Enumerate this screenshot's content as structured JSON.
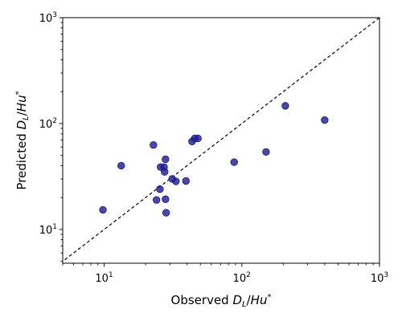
{
  "chart_data": {
    "type": "scatter",
    "xlabel": "Observed D_L/Hu*",
    "ylabel": "Predicted D_L/Hu*",
    "xscale": "log",
    "yscale": "log",
    "xlim": [
      5,
      1000
    ],
    "ylim": [
      4.8,
      1000
    ],
    "reference_line": {
      "type": "y=x",
      "style": "dashed",
      "color": "#000000"
    },
    "x_ticks": [
      10,
      100,
      1000
    ],
    "y_ticks": [
      10,
      100,
      1000
    ],
    "x_tick_labels": [
      {
        "base": "10",
        "exp": "1"
      },
      {
        "base": "10",
        "exp": "2"
      },
      {
        "base": "10",
        "exp": "3"
      }
    ],
    "y_tick_labels": [
      {
        "base": "10",
        "exp": "1"
      },
      {
        "base": "10",
        "exp": "2"
      },
      {
        "base": "10",
        "exp": "3"
      }
    ],
    "grid": false,
    "marker_color": "#1c1c8c",
    "points": [
      {
        "x": 9.8,
        "y": 15.3
      },
      {
        "x": 13.3,
        "y": 40.0
      },
      {
        "x": 22.8,
        "y": 62.7
      },
      {
        "x": 24.0,
        "y": 19.0
      },
      {
        "x": 25.4,
        "y": 24.0
      },
      {
        "x": 25.7,
        "y": 38.8
      },
      {
        "x": 27.2,
        "y": 38.8
      },
      {
        "x": 27.5,
        "y": 35.0
      },
      {
        "x": 27.9,
        "y": 46.0
      },
      {
        "x": 27.9,
        "y": 19.3
      },
      {
        "x": 28.2,
        "y": 14.4
      },
      {
        "x": 31.2,
        "y": 30.0
      },
      {
        "x": 33.2,
        "y": 28.5
      },
      {
        "x": 39.3,
        "y": 28.7
      },
      {
        "x": 43.5,
        "y": 67.8
      },
      {
        "x": 45.5,
        "y": 72.4
      },
      {
        "x": 48.0,
        "y": 72.4
      },
      {
        "x": 88.0,
        "y": 43.2
      },
      {
        "x": 150.0,
        "y": 54.0
      },
      {
        "x": 207.0,
        "y": 147.0
      },
      {
        "x": 400.0,
        "y": 108.0
      }
    ]
  }
}
